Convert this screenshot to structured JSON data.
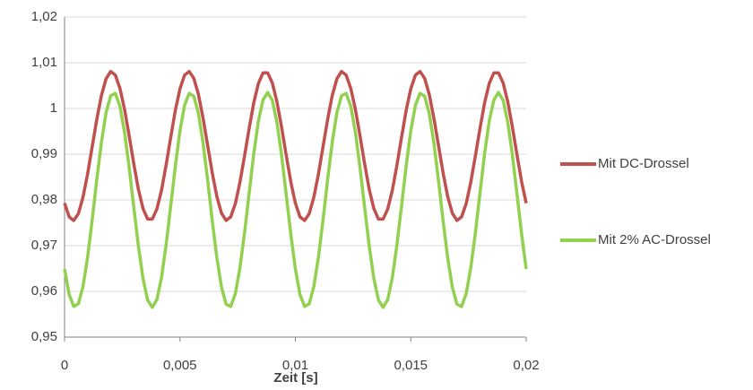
{
  "chart_data": {
    "type": "line",
    "xlabel": "Zeit [s]",
    "x": [
      0,
      0.0002,
      0.0004,
      0.0006,
      0.0008,
      0.001,
      0.0012,
      0.0014,
      0.0016,
      0.0018,
      0.002,
      0.0022,
      0.0024,
      0.0026,
      0.0028,
      0.003,
      0.0032,
      0.0034,
      0.0036,
      0.0038,
      0.004,
      0.0042,
      0.0044,
      0.0046,
      0.0048,
      0.005,
      0.0052,
      0.0054,
      0.0056,
      0.0058,
      0.006,
      0.0062,
      0.0064,
      0.0066,
      0.0068,
      0.007,
      0.0072,
      0.0074,
      0.0076,
      0.0078,
      0.008,
      0.0082,
      0.0084,
      0.0086,
      0.0088,
      0.009,
      0.0092,
      0.0094,
      0.0096,
      0.0098,
      0.01,
      0.0102,
      0.0104,
      0.0106,
      0.0108,
      0.011,
      0.0112,
      0.0114,
      0.0116,
      0.0118,
      0.012,
      0.0122,
      0.0124,
      0.0126,
      0.0128,
      0.013,
      0.0132,
      0.0134,
      0.0136,
      0.0138,
      0.014,
      0.0142,
      0.0144,
      0.0146,
      0.0148,
      0.015,
      0.0152,
      0.0154,
      0.0156,
      0.0158,
      0.016,
      0.0162,
      0.0164,
      0.0166,
      0.0168,
      0.017,
      0.0172,
      0.0174,
      0.0176,
      0.0178,
      0.018,
      0.0182,
      0.0184,
      0.0186,
      0.0188,
      0.019,
      0.0192,
      0.0194,
      0.0196,
      0.0198,
      0.02
    ],
    "series": [
      {
        "name": "Mit DC-Drossel",
        "color": "#c0504d",
        "values": [
          0.9793,
          0.9763,
          0.9755,
          0.977,
          0.9806,
          0.9857,
          0.9917,
          0.9977,
          1.0029,
          1.0065,
          1.0081,
          1.0073,
          1.0044,
          0.9998,
          0.994,
          0.9879,
          0.9823,
          0.9781,
          0.9758,
          0.9758,
          0.978,
          0.9821,
          0.9876,
          0.9937,
          0.9996,
          1.0043,
          1.0073,
          1.0081,
          1.0066,
          1.0031,
          0.9979,
          0.9919,
          0.9859,
          0.9807,
          0.9771,
          0.9755,
          0.9763,
          0.9792,
          0.9839,
          0.9897,
          0.9957,
          1.0013,
          1.0055,
          1.0078,
          1.0078,
          1.0056,
          1.0015,
          0.996,
          0.9899,
          0.984,
          0.9793,
          0.9763,
          0.9755,
          0.977,
          0.9806,
          0.9857,
          0.9917,
          0.9977,
          1.0029,
          1.0065,
          1.0081,
          1.0073,
          1.0044,
          0.9998,
          0.994,
          0.9879,
          0.9823,
          0.9781,
          0.9758,
          0.9758,
          0.978,
          0.9821,
          0.9876,
          0.9937,
          0.9996,
          1.0043,
          1.0073,
          1.0081,
          1.0066,
          1.0031,
          0.9979,
          0.9919,
          0.9859,
          0.9807,
          0.9771,
          0.9755,
          0.9763,
          0.9792,
          0.9839,
          0.9897,
          0.9957,
          1.0013,
          1.0055,
          1.0078,
          1.0078,
          1.0056,
          1.0015,
          0.996,
          0.9899,
          0.984,
          0.9793
        ]
      },
      {
        "name": "Mit 2% AC-Drossel",
        "color": "#92d050",
        "values": [
          0.9649,
          0.9593,
          0.9567,
          0.9573,
          0.9611,
          0.9675,
          0.9757,
          0.9846,
          0.9927,
          0.9991,
          1.0028,
          1.0033,
          1.0005,
          0.9948,
          0.9871,
          0.9784,
          0.9699,
          0.9628,
          0.9581,
          0.9565,
          0.9582,
          0.963,
          0.9702,
          0.9787,
          0.9874,
          0.9951,
          1.0007,
          1.0033,
          1.0027,
          0.9989,
          0.9925,
          0.9843,
          0.9754,
          0.9673,
          0.9609,
          0.9572,
          0.9567,
          0.9595,
          0.9652,
          0.9729,
          0.9816,
          0.9902,
          0.9973,
          1.0019,
          1.0035,
          1.0018,
          0.997,
          0.9899,
          0.9813,
          0.9726,
          0.9649,
          0.9593,
          0.9567,
          0.9573,
          0.9611,
          0.9675,
          0.9757,
          0.9846,
          0.9927,
          0.9991,
          1.0028,
          1.0033,
          1.0005,
          0.9948,
          0.9871,
          0.9784,
          0.9699,
          0.9628,
          0.9581,
          0.9565,
          0.9582,
          0.963,
          0.9702,
          0.9787,
          0.9874,
          0.9951,
          1.0007,
          1.0033,
          1.0027,
          0.9989,
          0.9925,
          0.9843,
          0.9754,
          0.9673,
          0.9609,
          0.9572,
          0.9567,
          0.9595,
          0.9652,
          0.9729,
          0.9816,
          0.9902,
          0.9973,
          1.0019,
          1.0035,
          1.0018,
          0.997,
          0.9899,
          0.9813,
          0.9726,
          0.9649
        ]
      }
    ],
    "xlim": [
      0,
      0.02
    ],
    "xticks": [
      0,
      {
        "value": 0.005,
        "label": "0,005"
      },
      {
        "value": 0.01,
        "label": "0,01"
      },
      {
        "value": 0.015,
        "label": "0,015"
      },
      {
        "value": 0.02,
        "label": "0,02"
      }
    ],
    "ylim": [
      0.95,
      1.02
    ],
    "yticks": [
      {
        "value": 0.95,
        "label": "0,95"
      },
      {
        "value": 0.96,
        "label": "0,96"
      },
      {
        "value": 0.97,
        "label": "0,97"
      },
      {
        "value": 0.98,
        "label": "0,98"
      },
      {
        "value": 0.99,
        "label": "0,99"
      },
      1,
      {
        "value": 1.01,
        "label": "1,01"
      },
      {
        "value": 1.02,
        "label": "1,02"
      }
    ],
    "grid": true,
    "legend": "right"
  }
}
